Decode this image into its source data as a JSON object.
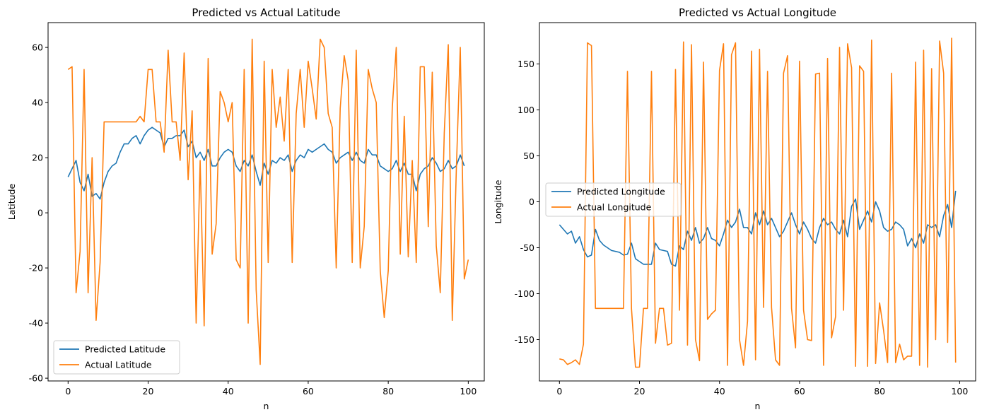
{
  "chart_data": [
    {
      "type": "line",
      "title": "Predicted vs Actual Latitude",
      "xlabel": "n",
      "ylabel": "Latitude",
      "xlim": [
        -5,
        104
      ],
      "ylim": [
        -61,
        69
      ],
      "xticks": [
        0,
        20,
        40,
        60,
        80,
        100
      ],
      "yticks": [
        -60,
        -40,
        -20,
        0,
        20,
        40,
        60
      ],
      "grid": false,
      "legend_position": "lower-left",
      "series": [
        {
          "name": "Predicted Latitude",
          "color": "#1f77b4",
          "values": [
            13,
            16,
            19,
            11,
            8,
            14,
            6,
            7,
            5,
            11,
            15,
            17,
            18,
            22,
            25,
            25,
            27,
            28,
            25,
            28,
            30,
            31,
            30,
            29,
            24,
            27,
            27,
            28,
            28,
            30,
            24,
            26,
            20,
            22,
            19,
            23,
            17,
            17,
            20,
            22,
            23,
            22,
            17,
            15,
            19,
            17,
            21,
            15,
            10,
            18,
            14,
            19,
            18,
            20,
            19,
            21,
            15,
            19,
            21,
            20,
            23,
            22,
            23,
            24,
            25,
            23,
            22,
            18,
            20,
            21,
            22,
            19,
            22,
            19,
            18,
            23,
            21,
            21,
            17,
            16,
            15,
            16,
            19,
            15,
            18,
            14,
            14,
            8,
            14,
            16,
            17,
            20,
            18,
            15,
            16,
            19,
            16,
            17,
            21,
            17
          ]
        },
        {
          "name": "Actual Latitude",
          "color": "#ff7f0e",
          "values": [
            52,
            53,
            -29,
            -14,
            52,
            -29,
            20,
            -39,
            -18,
            33,
            33,
            33,
            33,
            33,
            33,
            33,
            33,
            33,
            35,
            33,
            52,
            52,
            33,
            33,
            22,
            59,
            33,
            33,
            19,
            58,
            12,
            37,
            -40,
            19,
            -41,
            56,
            -15,
            -4,
            44,
            40,
            33,
            40,
            -17,
            -20,
            52,
            -40,
            63,
            -28,
            -55,
            55,
            -18,
            52,
            31,
            42,
            26,
            52,
            -18,
            36,
            52,
            31,
            55,
            45,
            34,
            63,
            60,
            36,
            31,
            -20,
            38,
            57,
            48,
            -18,
            59,
            -20,
            -5,
            52,
            45,
            40,
            -21,
            -38,
            -21,
            38,
            60,
            -15,
            35,
            -16,
            19,
            -18,
            53,
            53,
            -5,
            51,
            -12,
            -29,
            29,
            61,
            -39,
            15,
            60,
            -24,
            -17
          ]
        }
      ]
    },
    {
      "type": "line",
      "title": "Predicted vs Actual Longitude",
      "xlabel": "n",
      "ylabel": "Longitude",
      "xlim": [
        -5,
        104
      ],
      "ylim": [
        -195,
        195
      ],
      "xticks": [
        0,
        20,
        40,
        60,
        80,
        100
      ],
      "yticks": [
        -150,
        -100,
        -50,
        0,
        50,
        100,
        150
      ],
      "grid": false,
      "legend_position": "center-left",
      "series": [
        {
          "name": "Predicted Longitude",
          "color": "#1f77b4",
          "values": [
            -25,
            -30,
            -35,
            -32,
            -45,
            -38,
            -52,
            -60,
            -58,
            -30,
            -42,
            -47,
            -50,
            -53,
            -54,
            -55,
            -58,
            -57,
            -45,
            -62,
            -65,
            -68,
            -68,
            -68,
            -45,
            -52,
            -53,
            -54,
            -68,
            -70,
            -48,
            -52,
            -32,
            -42,
            -28,
            -45,
            -40,
            -28,
            -40,
            -42,
            -48,
            -35,
            -20,
            -28,
            -22,
            -8,
            -28,
            -28,
            -35,
            -12,
            -25,
            -10,
            -25,
            -18,
            -28,
            -38,
            -32,
            -22,
            -12,
            -25,
            -35,
            -22,
            -30,
            -40,
            -45,
            -28,
            -18,
            -25,
            -22,
            -30,
            -35,
            -20,
            -38,
            -5,
            3,
            -30,
            -20,
            -10,
            -22,
            0,
            -10,
            -28,
            -32,
            -30,
            -22,
            -25,
            -30,
            -48,
            -40,
            -50,
            -35,
            -45,
            -25,
            -28,
            -25,
            -38,
            -15,
            -3,
            -28,
            12
          ]
        },
        {
          "name": "Actual Longitude",
          "color": "#ff7f0e",
          "values": [
            -171,
            -172,
            -177,
            -175,
            -172,
            -177,
            -155,
            173,
            170,
            -116,
            -116,
            -116,
            -116,
            -116,
            -116,
            -116,
            -116,
            142,
            -116,
            -180,
            -180,
            -116,
            -116,
            142,
            -154,
            -116,
            -116,
            -156,
            -154,
            144,
            -118,
            174,
            -156,
            171,
            -150,
            -173,
            152,
            -128,
            -122,
            -118,
            143,
            172,
            -178,
            160,
            173,
            -150,
            -178,
            -130,
            164,
            -172,
            166,
            -115,
            142,
            -115,
            -172,
            -178,
            140,
            159,
            -116,
            -159,
            153,
            -118,
            -150,
            -151,
            139,
            140,
            -178,
            156,
            -148,
            -125,
            168,
            -118,
            172,
            146,
            -179,
            148,
            142,
            -179,
            176,
            -176,
            -110,
            -140,
            -175,
            140,
            -175,
            -155,
            -172,
            -168,
            -168,
            152,
            -178,
            165,
            -180,
            145,
            -150,
            175,
            140,
            -153,
            178,
            -175
          ]
        }
      ]
    }
  ]
}
